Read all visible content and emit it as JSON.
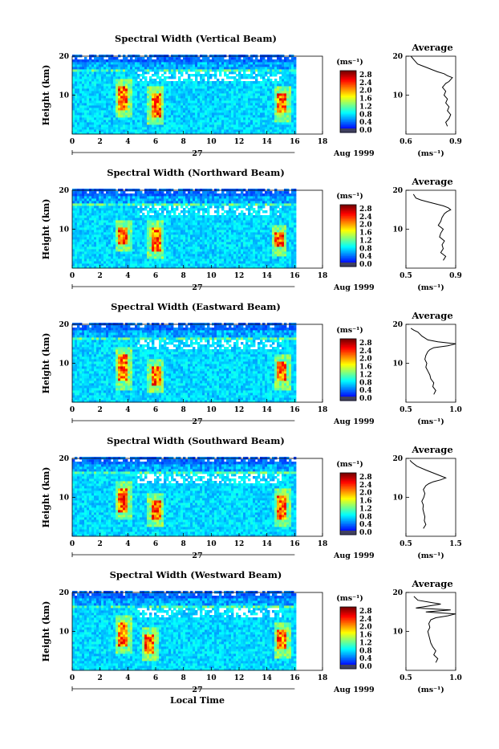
{
  "chart_data": [
    {
      "type": "heatmap",
      "title": "Spectral Width (Vertical Beam)",
      "ylabel": "Height (km)",
      "xlim": [
        0,
        18
      ],
      "ylim": [
        0,
        20
      ],
      "xticks": [
        "0",
        "2",
        "4",
        "6",
        "8",
        "10",
        "12",
        "14",
        "16",
        "18"
      ],
      "yticks": [
        "10",
        "20"
      ],
      "colorbar": {
        "unit": "(ms⁻¹)",
        "ticks": [
          "2.8",
          "2.4",
          "2.0",
          "1.6",
          "1.2",
          "0.8",
          "0.4",
          "0.0"
        ]
      },
      "date_day": "27",
      "date_month": "Aug 1999",
      "data_end_hour": 16,
      "hotspots": [
        {
          "x": 3.6,
          "y0": 6,
          "y1": 12
        },
        {
          "x": 5.9,
          "y0": 4,
          "y1": 10
        },
        {
          "x": 15,
          "y0": 5,
          "y1": 10
        }
      ],
      "average": {
        "title": "Average",
        "xlabel": "(ms⁻¹)",
        "xlim": [
          0.6,
          0.9
        ],
        "xticks": [
          "0.6",
          "0.9"
        ],
        "ylim": [
          0,
          20
        ],
        "yticks": [
          "10",
          "20"
        ],
        "profile_x": [
          0.85,
          0.84,
          0.86,
          0.87,
          0.85,
          0.86,
          0.84,
          0.85,
          0.83,
          0.84,
          0.82,
          0.83,
          0.84,
          0.86,
          0.87,
          0.88,
          0.85,
          0.83,
          0.79,
          0.76,
          0.73,
          0.7,
          0.67,
          0.65,
          0.63
        ],
        "profile_y": [
          2.0,
          3.0,
          4.0,
          5.0,
          6.0,
          7.0,
          8.0,
          9.0,
          10.0,
          11.0,
          12.0,
          12.5,
          13.0,
          13.5,
          14.0,
          14.5,
          15.0,
          15.5,
          16.0,
          16.5,
          17.0,
          17.5,
          18.0,
          19.0,
          20.0
        ]
      }
    },
    {
      "type": "heatmap",
      "title": "Spectral Width (Northward Beam)",
      "ylabel": "Height (km)",
      "xlim": [
        0,
        18
      ],
      "ylim": [
        0,
        20
      ],
      "xticks": [
        "0",
        "2",
        "4",
        "6",
        "8",
        "10",
        "12",
        "14",
        "16",
        "18"
      ],
      "yticks": [
        "10",
        "20"
      ],
      "colorbar": {
        "unit": "(ms⁻¹)",
        "ticks": [
          "2.8",
          "2.4",
          "2.0",
          "1.6",
          "1.2",
          "0.8",
          "0.4",
          "0.0"
        ]
      },
      "date_day": "27",
      "date_month": "Aug 1999",
      "data_end_hour": 16,
      "hotspots": [
        {
          "x": 3.6,
          "y0": 6,
          "y1": 10
        },
        {
          "x": 5.9,
          "y0": 4,
          "y1": 10
        },
        {
          "x": 14.8,
          "y0": 5,
          "y1": 9
        }
      ],
      "average": {
        "title": "Average",
        "xlabel": "(ms⁻¹)",
        "xlim": [
          0.5,
          0.9
        ],
        "xticks": [
          "0.5",
          "0.9"
        ],
        "ylim": [
          0,
          20
        ],
        "yticks": [
          "10",
          "20"
        ],
        "profile_x": [
          0.8,
          0.82,
          0.78,
          0.8,
          0.79,
          0.81,
          0.77,
          0.78,
          0.8,
          0.76,
          0.78,
          0.79,
          0.81,
          0.83,
          0.86,
          0.84,
          0.8,
          0.74,
          0.68,
          0.62,
          0.58,
          0.56
        ],
        "profile_y": [
          2.0,
          3.0,
          4.0,
          5.0,
          6.0,
          7.0,
          8.0,
          9.0,
          10.0,
          11.0,
          12.0,
          13.0,
          14.0,
          14.5,
          15.0,
          15.5,
          16.0,
          16.5,
          17.0,
          17.5,
          18.0,
          19.0
        ]
      }
    },
    {
      "type": "heatmap",
      "title": "Spectral Width (Eastward Beam)",
      "ylabel": "Height (km)",
      "xlim": [
        0,
        18
      ],
      "ylim": [
        0,
        20
      ],
      "xticks": [
        "0",
        "2",
        "4",
        "6",
        "8",
        "10",
        "12",
        "14",
        "16",
        "18"
      ],
      "yticks": [
        "10",
        "20"
      ],
      "colorbar": {
        "unit": "(ms⁻¹)",
        "ticks": [
          "2.8",
          "2.4",
          "2.0",
          "1.6",
          "1.2",
          "0.8",
          "0.4",
          "0.0"
        ]
      },
      "date_day": "27",
      "date_month": "Aug 1999",
      "data_end_hour": 16,
      "hotspots": [
        {
          "x": 3.6,
          "y0": 5,
          "y1": 12
        },
        {
          "x": 5.9,
          "y0": 4,
          "y1": 9
        },
        {
          "x": 15,
          "y0": 5,
          "y1": 10
        }
      ],
      "average": {
        "title": "Average",
        "xlabel": "(ms⁻¹)",
        "xlim": [
          0.5,
          1.0
        ],
        "xticks": [
          "0.5",
          "1.0"
        ],
        "ylim": [
          0,
          20
        ],
        "yticks": [
          "10",
          "20"
        ],
        "profile_x": [
          0.78,
          0.8,
          0.77,
          0.78,
          0.75,
          0.74,
          0.72,
          0.7,
          0.71,
          0.69,
          0.7,
          0.72,
          0.74,
          0.78,
          0.92,
          1.0,
          0.82,
          0.72,
          0.66,
          0.62,
          0.58,
          0.55
        ],
        "profile_y": [
          2.0,
          3.0,
          4.0,
          5.0,
          6.0,
          7.0,
          8.0,
          9.0,
          10.0,
          11.0,
          12.0,
          13.0,
          13.5,
          14.0,
          14.5,
          15.0,
          15.5,
          16.0,
          17.0,
          18.0,
          18.5,
          19.0
        ]
      }
    },
    {
      "type": "heatmap",
      "title": "Spectral Width (Southward Beam)",
      "ylabel": "Height (km)",
      "xlim": [
        0,
        18
      ],
      "ylim": [
        0,
        20
      ],
      "xticks": [
        "0",
        "2",
        "4",
        "6",
        "8",
        "10",
        "12",
        "14",
        "16",
        "18"
      ],
      "yticks": [
        "10",
        "20"
      ],
      "colorbar": {
        "unit": "(ms⁻¹)",
        "ticks": [
          "2.8",
          "2.4",
          "2.0",
          "1.6",
          "1.2",
          "0.8",
          "0.4",
          "0.0"
        ]
      },
      "date_day": "27",
      "date_month": "Aug 1999",
      "data_end_hour": 16,
      "hotspots": [
        {
          "x": 3.6,
          "y0": 6,
          "y1": 12
        },
        {
          "x": 5.9,
          "y0": 4,
          "y1": 9
        },
        {
          "x": 15,
          "y0": 4,
          "y1": 10
        }
      ],
      "average": {
        "title": "Average",
        "xlabel": "(ms⁻¹)",
        "xlim": [
          0.5,
          1.5
        ],
        "xticks": [
          "0.5",
          "1.5"
        ],
        "ylim": [
          0,
          20
        ],
        "yticks": [
          "10",
          "20"
        ],
        "profile_x": [
          0.85,
          0.9,
          0.87,
          0.88,
          0.86,
          0.84,
          0.85,
          0.82,
          0.86,
          0.88,
          0.85,
          0.9,
          0.96,
          1.05,
          1.2,
          1.3,
          1.1,
          0.9,
          0.72,
          0.62,
          0.58
        ],
        "profile_y": [
          2.0,
          3.0,
          4.0,
          5.0,
          6.0,
          7.0,
          8.0,
          9.0,
          10.0,
          11.0,
          12.0,
          13.0,
          13.5,
          14.0,
          14.5,
          15.0,
          16.0,
          17.0,
          18.0,
          19.0,
          19.5
        ]
      }
    },
    {
      "type": "heatmap",
      "title": "Spectral Width (Westward Beam)",
      "ylabel": "Height (km)",
      "xlabel": "Local Time",
      "xlim": [
        0,
        18
      ],
      "ylim": [
        0,
        20
      ],
      "xticks": [
        "0",
        "2",
        "4",
        "6",
        "8",
        "10",
        "12",
        "14",
        "16",
        "18"
      ],
      "yticks": [
        "10",
        "20"
      ],
      "colorbar": {
        "unit": "(ms⁻¹)",
        "ticks": [
          "2.8",
          "2.4",
          "2.0",
          "1.6",
          "1.2",
          "0.8",
          "0.4",
          "0.0"
        ]
      },
      "date_day": "27",
      "date_month": "Aug 1999",
      "data_end_hour": 16,
      "hotspots": [
        {
          "x": 3.6,
          "y0": 6,
          "y1": 12
        },
        {
          "x": 5.5,
          "y0": 4,
          "y1": 9
        },
        {
          "x": 15,
          "y0": 5,
          "y1": 10
        }
      ],
      "average": {
        "title": "Average",
        "xlabel": "(ms⁻¹)",
        "xlim": [
          0.5,
          1.0
        ],
        "xticks": [
          "0.5",
          "1.0"
        ],
        "ylim": [
          0,
          20
        ],
        "yticks": [
          "10",
          "20"
        ],
        "profile_x": [
          0.8,
          0.82,
          0.78,
          0.8,
          0.77,
          0.75,
          0.74,
          0.73,
          0.72,
          0.74,
          0.73,
          0.75,
          0.8,
          0.92,
          1.0,
          0.7,
          0.95,
          0.6,
          0.85,
          0.62,
          0.58
        ],
        "profile_y": [
          2.0,
          3.0,
          4.0,
          5.0,
          6.0,
          7.0,
          8.0,
          9.0,
          10.0,
          11.0,
          12.0,
          13.0,
          13.5,
          14.0,
          14.5,
          15.0,
          15.5,
          16.0,
          17.0,
          18.0,
          19.0
        ]
      }
    }
  ]
}
